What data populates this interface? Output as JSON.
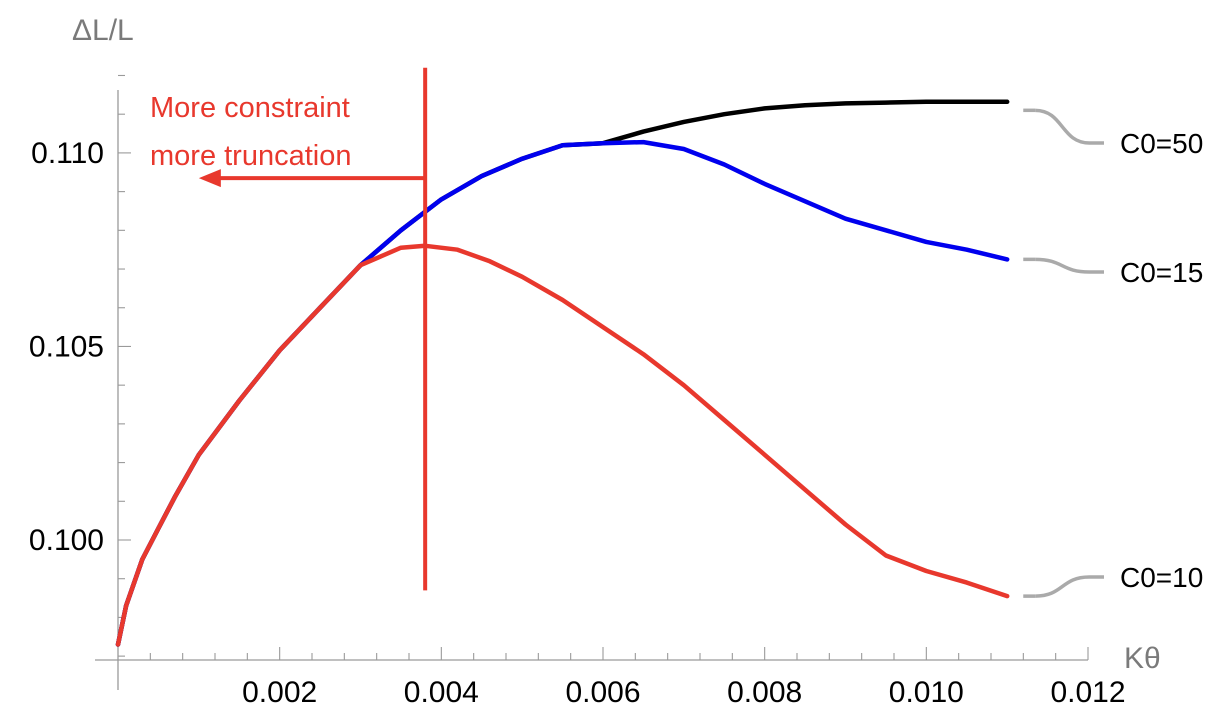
{
  "chart_data": {
    "type": "line",
    "title": "",
    "xlabel": "Kθ",
    "ylabel": "ΔL/L",
    "xlim": [
      0,
      0.012
    ],
    "ylim": [
      0.0969,
      0.1124
    ],
    "x_ticks": [
      0.002,
      0.004,
      0.006,
      0.008,
      0.01,
      0.012
    ],
    "x_tick_labels": [
      "0.002",
      "0.004",
      "0.006",
      "0.008",
      "0.010",
      "0.012"
    ],
    "y_ticks": [
      0.1,
      0.105,
      0.11
    ],
    "y_tick_labels": [
      "0.100",
      "0.105",
      "0.110"
    ],
    "grid": false,
    "legend": "none",
    "series": [
      {
        "name": "C0=50",
        "color": "#000000",
        "points": [
          [
            0.0,
            0.0973
          ],
          [
            0.0001,
            0.0983
          ],
          [
            0.0003,
            0.0995
          ],
          [
            0.0005,
            0.1003
          ],
          [
            0.0007,
            0.1011
          ],
          [
            0.001,
            0.1022
          ],
          [
            0.0015,
            0.1036
          ],
          [
            0.002,
            0.1049
          ],
          [
            0.0025,
            0.106
          ],
          [
            0.003,
            0.1071
          ],
          [
            0.0035,
            0.108
          ],
          [
            0.004,
            0.1088
          ],
          [
            0.0045,
            0.1094
          ],
          [
            0.005,
            0.10985
          ],
          [
            0.0055,
            0.1102
          ],
          [
            0.006,
            0.11025
          ],
          [
            0.0065,
            0.11055
          ],
          [
            0.007,
            0.1108
          ],
          [
            0.0075,
            0.111
          ],
          [
            0.008,
            0.11115
          ],
          [
            0.0085,
            0.11123
          ],
          [
            0.009,
            0.11128
          ],
          [
            0.0095,
            0.1113
          ],
          [
            0.01,
            0.11132
          ],
          [
            0.011,
            0.11132
          ]
        ]
      },
      {
        "name": "C0=15",
        "color": "#0000ee",
        "points": [
          [
            0.0,
            0.0973
          ],
          [
            0.0001,
            0.0983
          ],
          [
            0.0003,
            0.0995
          ],
          [
            0.0005,
            0.1003
          ],
          [
            0.0007,
            0.1011
          ],
          [
            0.001,
            0.1022
          ],
          [
            0.0015,
            0.1036
          ],
          [
            0.002,
            0.1049
          ],
          [
            0.0025,
            0.106
          ],
          [
            0.003,
            0.1071
          ],
          [
            0.0035,
            0.108
          ],
          [
            0.004,
            0.1088
          ],
          [
            0.0045,
            0.1094
          ],
          [
            0.005,
            0.10985
          ],
          [
            0.0055,
            0.1102
          ],
          [
            0.006,
            0.11025
          ],
          [
            0.0065,
            0.11028
          ],
          [
            0.007,
            0.1101
          ],
          [
            0.0075,
            0.1097
          ],
          [
            0.008,
            0.1092
          ],
          [
            0.0085,
            0.10875
          ],
          [
            0.009,
            0.1083
          ],
          [
            0.0095,
            0.108
          ],
          [
            0.01,
            0.1077
          ],
          [
            0.0105,
            0.1075
          ],
          [
            0.011,
            0.10725
          ]
        ]
      },
      {
        "name": "C0=10",
        "color": "#e8382d",
        "points": [
          [
            0.0,
            0.0973
          ],
          [
            0.0001,
            0.0983
          ],
          [
            0.0003,
            0.0995
          ],
          [
            0.0005,
            0.1003
          ],
          [
            0.0007,
            0.1011
          ],
          [
            0.001,
            0.1022
          ],
          [
            0.0015,
            0.1036
          ],
          [
            0.002,
            0.1049
          ],
          [
            0.0025,
            0.106
          ],
          [
            0.003,
            0.1071
          ],
          [
            0.0035,
            0.10755
          ],
          [
            0.0038,
            0.1076
          ],
          [
            0.0042,
            0.1075
          ],
          [
            0.0046,
            0.1072
          ],
          [
            0.005,
            0.1068
          ],
          [
            0.0055,
            0.1062
          ],
          [
            0.006,
            0.1055
          ],
          [
            0.0065,
            0.1048
          ],
          [
            0.007,
            0.104
          ],
          [
            0.0075,
            0.1031
          ],
          [
            0.008,
            0.1022
          ],
          [
            0.0085,
            0.1013
          ],
          [
            0.009,
            0.1004
          ],
          [
            0.0095,
            0.0996
          ],
          [
            0.01,
            0.0992
          ],
          [
            0.0105,
            0.0989
          ],
          [
            0.011,
            0.09855
          ]
        ]
      }
    ],
    "series_label_points": [
      {
        "series": "C0=50",
        "x": 0.0111,
        "y": 0.1111
      },
      {
        "series": "C0=15",
        "x": 0.0111,
        "y": 0.10725
      },
      {
        "series": "C0=10",
        "x": 0.0111,
        "y": 0.09855
      }
    ],
    "annotation": {
      "text_line1": "More constraint",
      "text_line2": "more truncation",
      "line_x": 0.0038,
      "line_y_top": 0.1122,
      "line_y_bottom": 0.0987,
      "arrow_from_x": 0.0038,
      "arrow_to_x": 0.001,
      "arrow_y": 0.10935,
      "color": "#e8382d"
    }
  }
}
